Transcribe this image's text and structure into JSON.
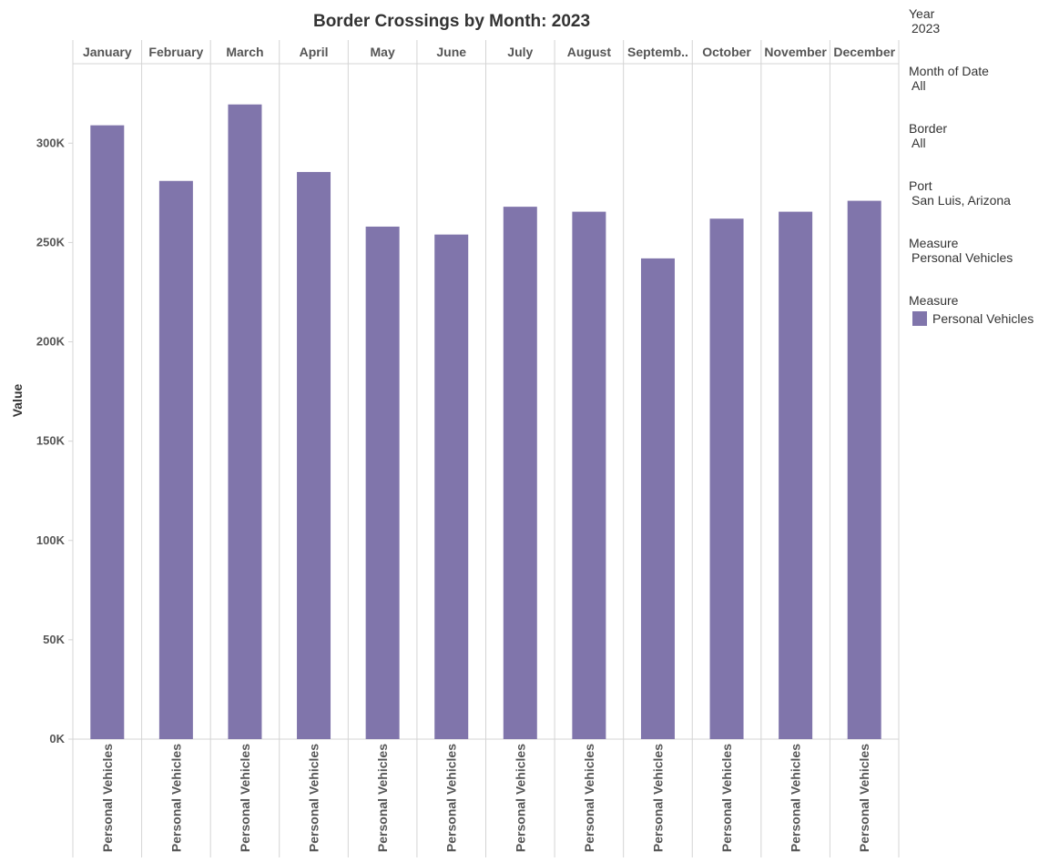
{
  "chart_data": {
    "type": "bar",
    "title": "Border Crossings by Month:  2023",
    "ylabel": "Value",
    "xlabel": "",
    "ylim": [
      0,
      340000
    ],
    "yticks": [
      0,
      50000,
      100000,
      150000,
      200000,
      250000,
      300000
    ],
    "ytick_labels": [
      "0K",
      "50K",
      "100K",
      "150K",
      "200K",
      "250K",
      "300K"
    ],
    "categories": [
      "January",
      "February",
      "March",
      "April",
      "May",
      "June",
      "July",
      "August",
      "Septemb..",
      "October",
      "November",
      "December"
    ],
    "sub_category": "Personal Vehicles",
    "series": [
      {
        "name": "Personal Vehicles",
        "color": "#8075ab",
        "values": [
          309000,
          281000,
          319500,
          285500,
          258000,
          254000,
          268000,
          265500,
          242000,
          262000,
          265500,
          271000
        ]
      }
    ],
    "grid": false,
    "legend_position": "right"
  },
  "filters": [
    {
      "title": "Year",
      "value": "2023"
    },
    {
      "title": "Month of Date",
      "value": "All"
    },
    {
      "title": "Border",
      "value": "All"
    },
    {
      "title": "Port",
      "value": "San Luis, Arizona"
    },
    {
      "title": "Measure",
      "value": "Personal Vehicles"
    }
  ],
  "legend": {
    "title": "Measure",
    "items": [
      {
        "label": "Personal Vehicles",
        "color": "#8075ab"
      }
    ]
  }
}
